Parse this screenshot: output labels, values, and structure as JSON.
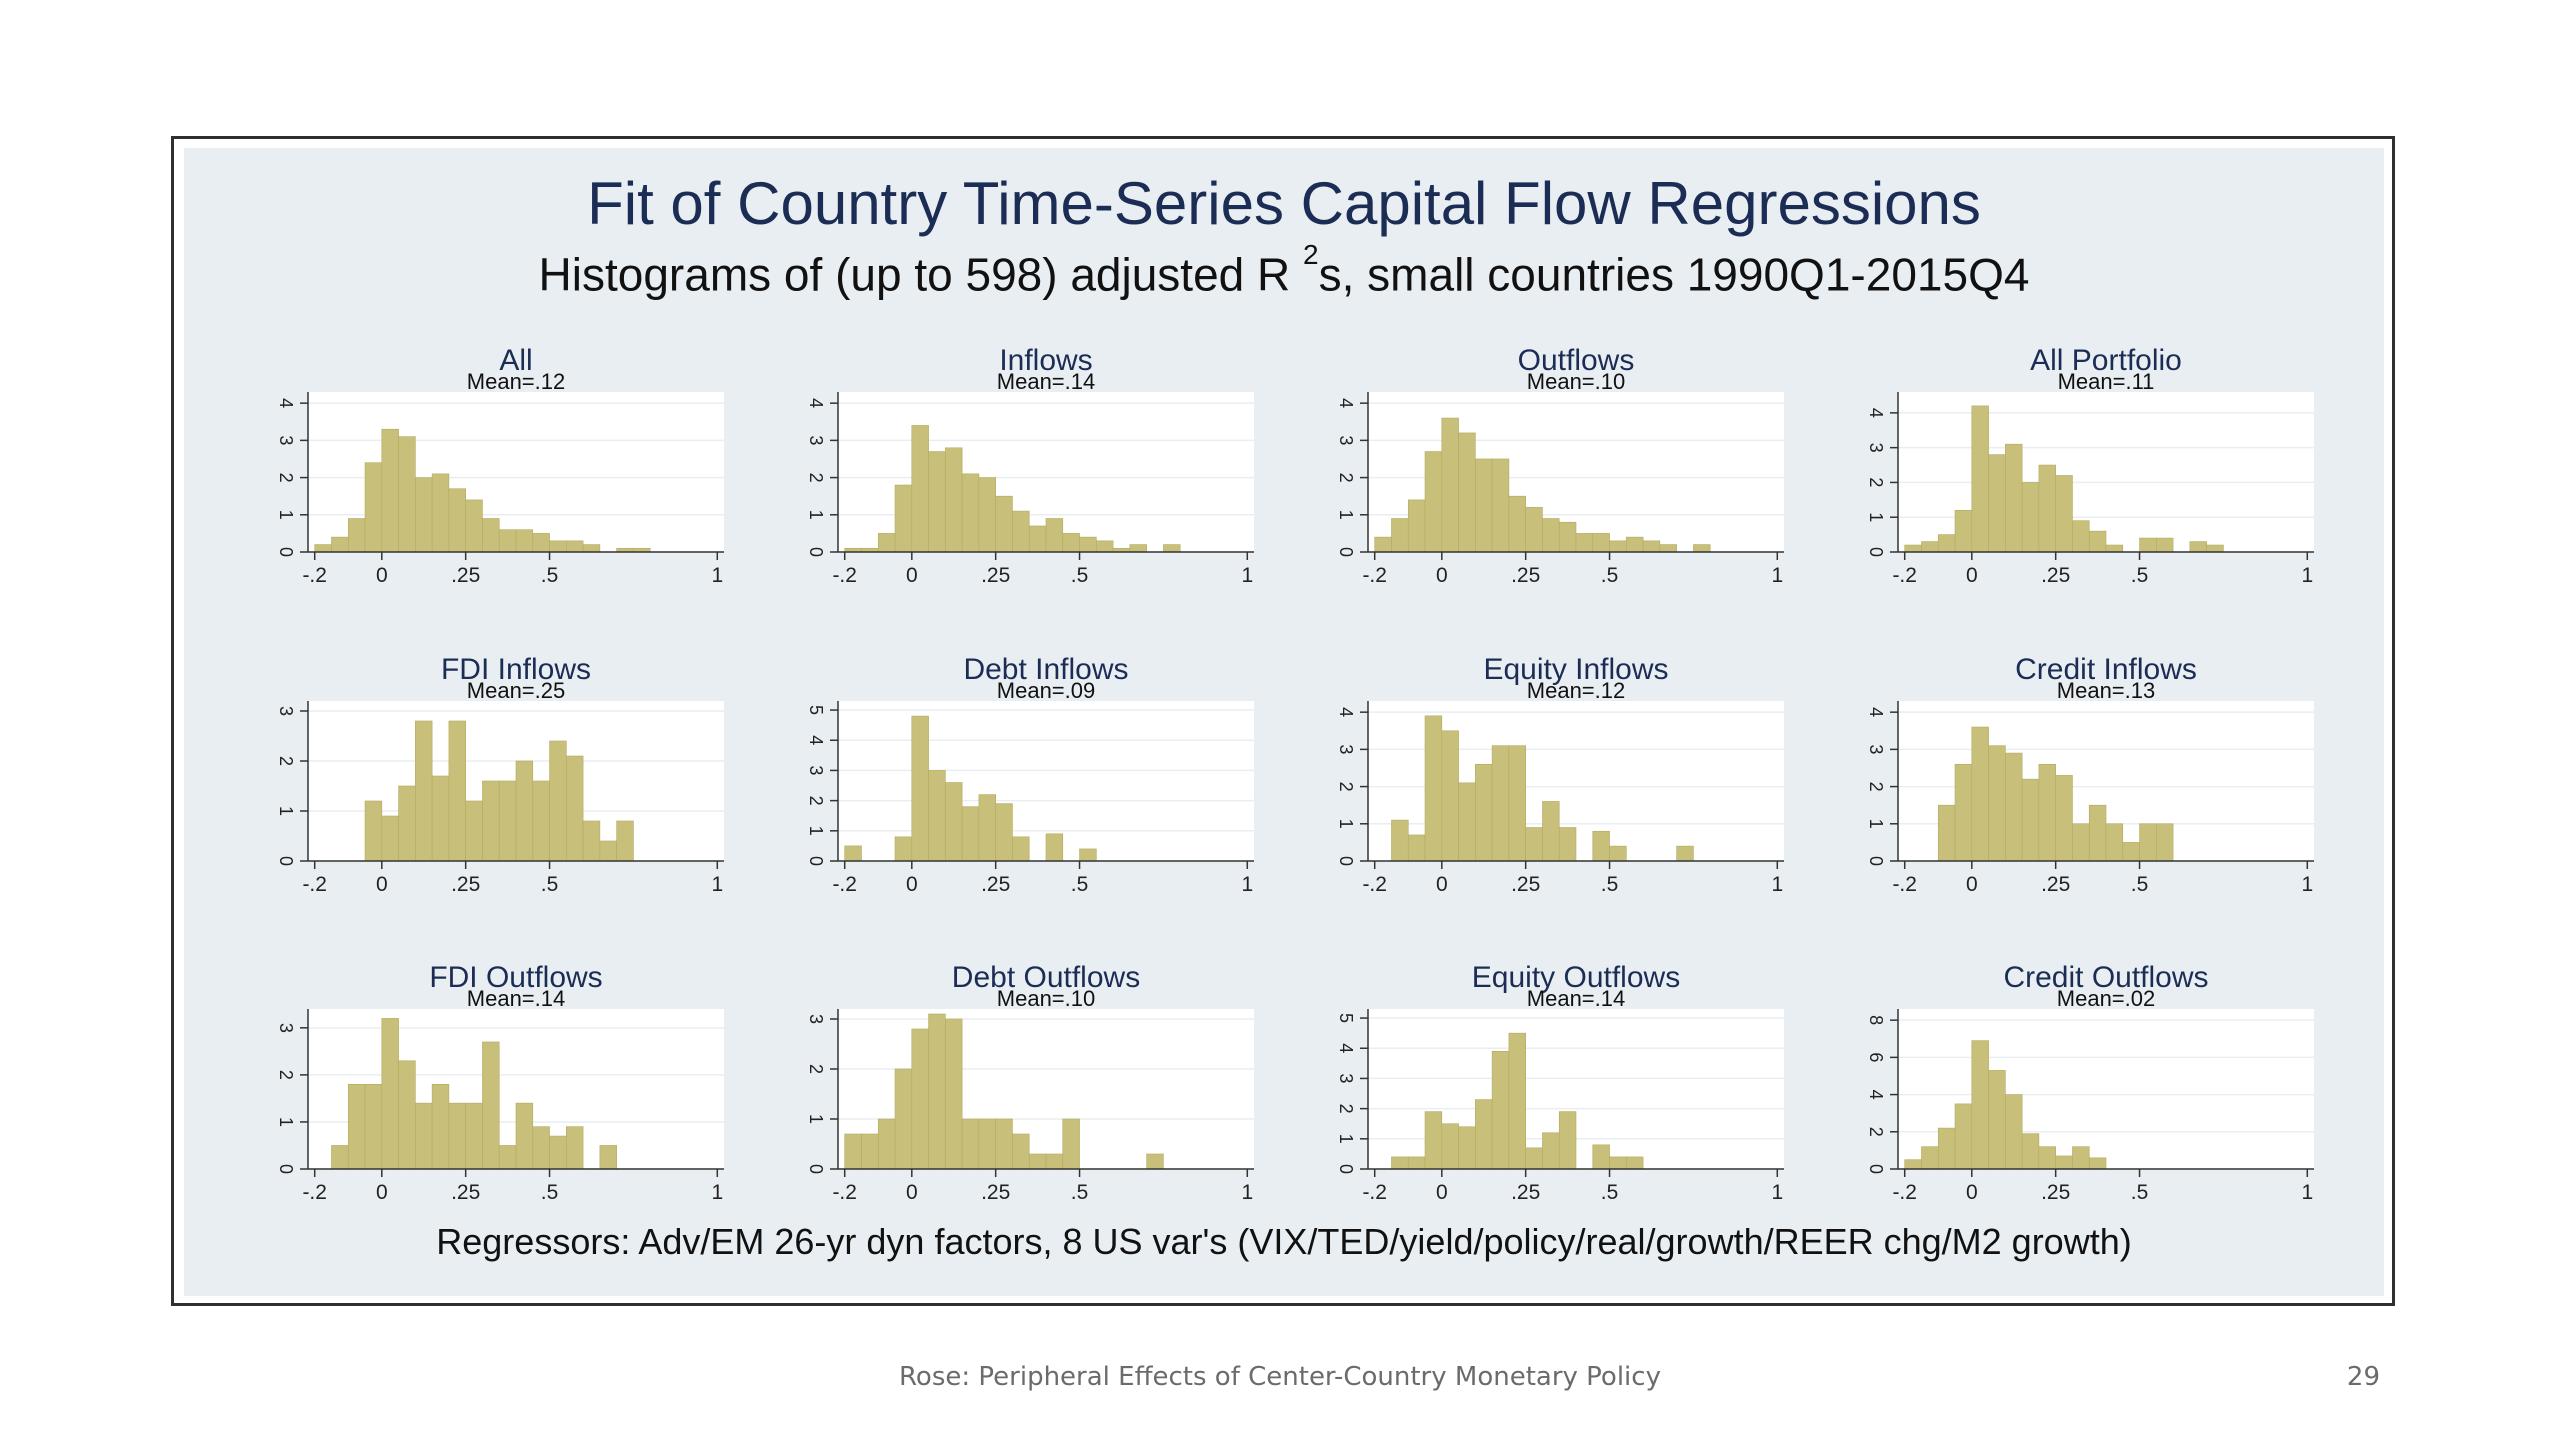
{
  "title": "Fit of Country Time-Series Capital Flow Regressions",
  "subtitle_pre": "Histograms of (up to 598) adjusted R",
  "subtitle_sup": "2",
  "subtitle_post": "s, small countries 1990Q1-2015Q4",
  "note": "Regressors: Adv/EM 26-yr dyn factors, 8 US var's (VIX/TED/yield/policy/real/growth/REER chg/M2 growth)",
  "footer": "Rose: Peripheral Effects of Center-Country Monetary Policy",
  "page_number": "29",
  "colors": {
    "bar": "#c8c07a",
    "bar_edge": "#b3aa5f",
    "plot_bg": "#ffffff",
    "grid": "#eaeef1",
    "title": "#1c2d55"
  },
  "chart_data": [
    {
      "type": "bar",
      "title": "All",
      "subtitle": "Mean=.12",
      "xticks": [
        "-.2",
        "0",
        ".25",
        ".5",
        "1"
      ],
      "yticks": [
        "0",
        "1",
        "2",
        "3",
        "4"
      ],
      "ylim": [
        0,
        4.3
      ],
      "bin_width": 0.05,
      "bins": [
        -0.2,
        -0.15,
        -0.1,
        -0.05,
        0,
        0.05,
        0.1,
        0.15,
        0.2,
        0.25,
        0.3,
        0.35,
        0.4,
        0.45,
        0.5,
        0.55,
        0.6,
        0.65,
        0.7,
        0.75
      ],
      "values": [
        0.2,
        0.4,
        0.9,
        2.4,
        3.3,
        3.1,
        2.0,
        2.1,
        1.7,
        1.4,
        0.9,
        0.6,
        0.6,
        0.5,
        0.3,
        0.3,
        0.2,
        0,
        0.1,
        0.1
      ]
    },
    {
      "type": "bar",
      "title": "Inflows",
      "subtitle": "Mean=.14",
      "xticks": [
        "-.2",
        "0",
        ".25",
        ".5",
        "1"
      ],
      "yticks": [
        "0",
        "1",
        "2",
        "3",
        "4"
      ],
      "ylim": [
        0,
        4.3
      ],
      "bin_width": 0.05,
      "bins": [
        -0.2,
        -0.15,
        -0.1,
        -0.05,
        0,
        0.05,
        0.1,
        0.15,
        0.2,
        0.25,
        0.3,
        0.35,
        0.4,
        0.45,
        0.5,
        0.55,
        0.6,
        0.65,
        0.7,
        0.75
      ],
      "values": [
        0.1,
        0.1,
        0.5,
        1.8,
        3.4,
        2.7,
        2.8,
        2.1,
        2.0,
        1.5,
        1.1,
        0.7,
        0.9,
        0.5,
        0.4,
        0.3,
        0.1,
        0.2,
        0,
        0.2
      ]
    },
    {
      "type": "bar",
      "title": "Outflows",
      "subtitle": "Mean=.10",
      "xticks": [
        "-.2",
        "0",
        ".25",
        ".5",
        "1"
      ],
      "yticks": [
        "0",
        "1",
        "2",
        "3",
        "4"
      ],
      "ylim": [
        0,
        4.3
      ],
      "bin_width": 0.05,
      "bins": [
        -0.2,
        -0.15,
        -0.1,
        -0.05,
        0,
        0.05,
        0.1,
        0.15,
        0.2,
        0.25,
        0.3,
        0.35,
        0.4,
        0.45,
        0.5,
        0.55,
        0.6,
        0.65,
        0.7,
        0.75
      ],
      "values": [
        0.4,
        0.9,
        1.4,
        2.7,
        3.6,
        3.2,
        2.5,
        2.5,
        1.5,
        1.2,
        0.9,
        0.8,
        0.5,
        0.5,
        0.3,
        0.4,
        0.3,
        0.2,
        0,
        0.2
      ]
    },
    {
      "type": "bar",
      "title": "All Portfolio",
      "subtitle": "Mean=.11",
      "xticks": [
        "-.2",
        "0",
        ".25",
        ".5",
        "1"
      ],
      "yticks": [
        "0",
        "1",
        "2",
        "3",
        "4"
      ],
      "ylim": [
        0,
        4.6
      ],
      "bin_width": 0.05,
      "bins": [
        -0.2,
        -0.15,
        -0.1,
        -0.05,
        0,
        0.05,
        0.1,
        0.15,
        0.2,
        0.25,
        0.3,
        0.35,
        0.4,
        0.45,
        0.5,
        0.55,
        0.6,
        0.65,
        0.7
      ],
      "values": [
        0.2,
        0.3,
        0.5,
        1.2,
        4.2,
        2.8,
        3.1,
        2.0,
        2.5,
        2.2,
        0.9,
        0.6,
        0.2,
        0,
        0.4,
        0.4,
        0,
        0.3,
        0.2
      ]
    },
    {
      "type": "bar",
      "title": "FDI Inflows",
      "subtitle": "Mean=.25",
      "xticks": [
        "-.2",
        "0",
        ".25",
        ".5",
        "1"
      ],
      "yticks": [
        "0",
        "1",
        "2",
        "3"
      ],
      "ylim": [
        0,
        3.2
      ],
      "bin_width": 0.05,
      "bins": [
        -0.05,
        0,
        0.05,
        0.1,
        0.15,
        0.2,
        0.25,
        0.3,
        0.35,
        0.4,
        0.45,
        0.5,
        0.55,
        0.6,
        0.65,
        0.7
      ],
      "values": [
        1.2,
        0.9,
        1.5,
        2.8,
        1.7,
        2.8,
        1.2,
        1.6,
        1.6,
        2.0,
        1.6,
        2.4,
        2.1,
        0.8,
        0.4,
        0.8
      ]
    },
    {
      "type": "bar",
      "title": "Debt Inflows",
      "subtitle": "Mean=.09",
      "xticks": [
        "-.2",
        "0",
        ".25",
        ".5",
        "1"
      ],
      "yticks": [
        "0",
        "1",
        "2",
        "3",
        "4",
        "5"
      ],
      "ylim": [
        0,
        5.3
      ],
      "bin_width": 0.05,
      "bins": [
        -0.2,
        -0.15,
        -0.1,
        -0.05,
        0,
        0.05,
        0.1,
        0.15,
        0.2,
        0.25,
        0.3,
        0.35,
        0.4,
        0.45,
        0.5
      ],
      "values": [
        0.5,
        0,
        0,
        0.8,
        4.8,
        3.0,
        2.6,
        1.8,
        2.2,
        1.9,
        0.8,
        0,
        0.9,
        0,
        0.4
      ]
    },
    {
      "type": "bar",
      "title": "Equity Inflows",
      "subtitle": "Mean=.12",
      "xticks": [
        "-.2",
        "0",
        ".25",
        ".5",
        "1"
      ],
      "yticks": [
        "0",
        "1",
        "2",
        "3",
        "4"
      ],
      "ylim": [
        0,
        4.3
      ],
      "bin_width": 0.05,
      "bins": [
        -0.15,
        -0.1,
        -0.05,
        0,
        0.05,
        0.1,
        0.15,
        0.2,
        0.25,
        0.3,
        0.35,
        0.4,
        0.45,
        0.5,
        0.55,
        0.6,
        0.65,
        0.7
      ],
      "values": [
        1.1,
        0.7,
        3.9,
        3.5,
        2.1,
        2.6,
        3.1,
        3.1,
        0.9,
        1.6,
        0.9,
        0,
        0.8,
        0.4,
        0,
        0,
        0,
        0.4
      ]
    },
    {
      "type": "bar",
      "title": "Credit Inflows",
      "subtitle": "Mean=.13",
      "xticks": [
        "-.2",
        "0",
        ".25",
        ".5",
        "1"
      ],
      "yticks": [
        "0",
        "1",
        "2",
        "3",
        "4"
      ],
      "ylim": [
        0,
        4.3
      ],
      "bin_width": 0.05,
      "bins": [
        -0.1,
        -0.05,
        0,
        0.05,
        0.1,
        0.15,
        0.2,
        0.25,
        0.3,
        0.35,
        0.4,
        0.45,
        0.5,
        0.55
      ],
      "values": [
        1.5,
        2.6,
        3.6,
        3.1,
        2.9,
        2.2,
        2.6,
        2.3,
        1.0,
        1.5,
        1.0,
        0.5,
        1.0,
        1.0
      ]
    },
    {
      "type": "bar",
      "title": "FDI Outflows",
      "subtitle": "Mean=.14",
      "xticks": [
        "-.2",
        "0",
        ".25",
        ".5",
        "1"
      ],
      "yticks": [
        "0",
        "1",
        "2",
        "3"
      ],
      "ylim": [
        0,
        3.4
      ],
      "bin_width": 0.05,
      "bins": [
        -0.15,
        -0.1,
        -0.05,
        0,
        0.05,
        0.1,
        0.15,
        0.2,
        0.25,
        0.3,
        0.35,
        0.4,
        0.45,
        0.5,
        0.55,
        0.6,
        0.65
      ],
      "values": [
        0.5,
        1.8,
        1.8,
        3.2,
        2.3,
        1.4,
        1.8,
        1.4,
        1.4,
        2.7,
        0.5,
        1.4,
        0.9,
        0.7,
        0.9,
        0,
        0.5
      ]
    },
    {
      "type": "bar",
      "title": "Debt Outflows",
      "subtitle": "Mean=.10",
      "xticks": [
        "-.2",
        "0",
        ".25",
        ".5",
        "1"
      ],
      "yticks": [
        "0",
        "1",
        "2",
        "3"
      ],
      "ylim": [
        0,
        3.2
      ],
      "bin_width": 0.05,
      "bins": [
        -0.2,
        -0.15,
        -0.1,
        -0.05,
        0,
        0.05,
        0.1,
        0.15,
        0.2,
        0.25,
        0.3,
        0.35,
        0.4,
        0.45,
        0.5,
        0.55,
        0.6,
        0.65,
        0.7
      ],
      "values": [
        0.7,
        0.7,
        1.0,
        2.0,
        2.8,
        3.1,
        3.0,
        1.0,
        1.0,
        1.0,
        0.7,
        0.3,
        0.3,
        1.0,
        0,
        0,
        0,
        0,
        0.3
      ]
    },
    {
      "type": "bar",
      "title": "Equity Outflows",
      "subtitle": "Mean=.14",
      "xticks": [
        "-.2",
        "0",
        ".25",
        ".5",
        "1"
      ],
      "yticks": [
        "0",
        "1",
        "2",
        "3",
        "4",
        "5"
      ],
      "ylim": [
        0,
        5.3
      ],
      "bin_width": 0.05,
      "bins": [
        -0.15,
        -0.1,
        -0.05,
        0,
        0.05,
        0.1,
        0.15,
        0.2,
        0.25,
        0.3,
        0.35,
        0.4,
        0.45,
        0.5,
        0.55
      ],
      "values": [
        0.4,
        0.4,
        1.9,
        1.5,
        1.4,
        2.3,
        3.9,
        4.5,
        0.7,
        1.2,
        1.9,
        0,
        0.8,
        0.4,
        0.4
      ]
    },
    {
      "type": "bar",
      "title": "Credit Outflows",
      "subtitle": "Mean=.02",
      "xticks": [
        "-.2",
        "0",
        ".25",
        ".5",
        "1"
      ],
      "yticks": [
        "0",
        "2",
        "4",
        "6",
        "8"
      ],
      "ylim": [
        0,
        8.6
      ],
      "bin_width": 0.05,
      "bins": [
        -0.2,
        -0.15,
        -0.1,
        -0.05,
        0,
        0.05,
        0.1,
        0.15,
        0.2,
        0.25,
        0.3,
        0.35
      ],
      "values": [
        0.5,
        1.2,
        2.2,
        3.5,
        6.9,
        5.3,
        4.0,
        1.9,
        1.2,
        0.7,
        1.2,
        0.6
      ]
    }
  ]
}
